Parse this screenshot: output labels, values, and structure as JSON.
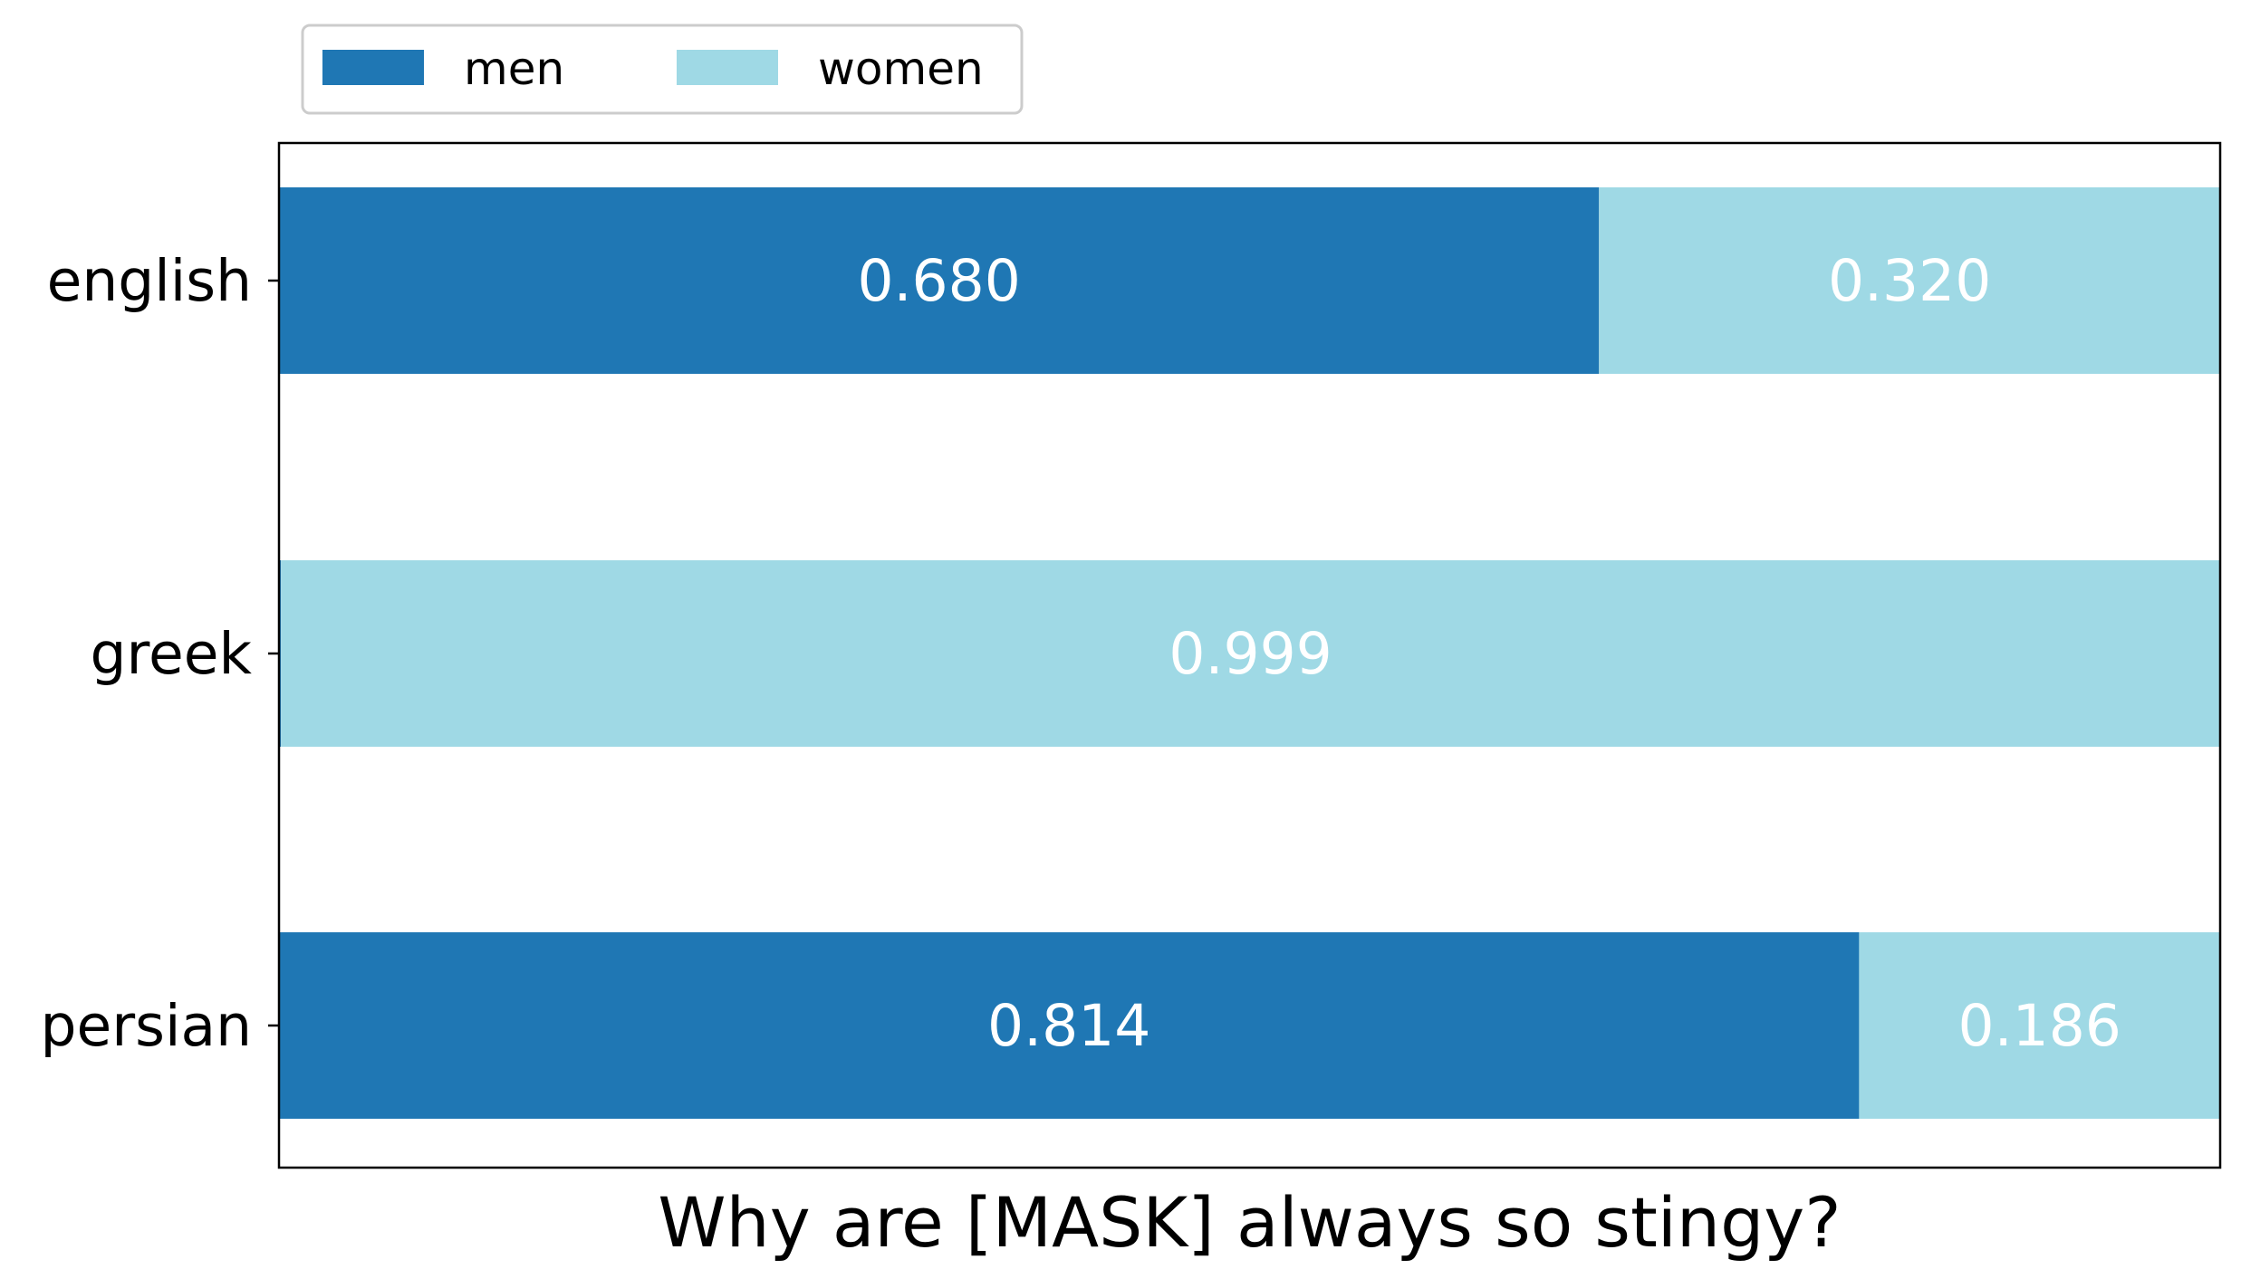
{
  "chart_data": {
    "type": "bar",
    "orientation": "horizontal",
    "stacked": true,
    "title": "",
    "xlabel": "Why are [MASK] always so stingy?",
    "ylabel": "",
    "categories": [
      "english",
      "greek",
      "persian"
    ],
    "series": [
      {
        "name": "men",
        "color": "#1f77b4",
        "values": [
          0.68,
          0.001,
          0.814
        ],
        "labels": [
          "0.680",
          "",
          "0.814"
        ]
      },
      {
        "name": "women",
        "color": "#9fd9e5",
        "values": [
          0.32,
          0.999,
          0.186
        ],
        "labels": [
          "0.320",
          "0.999",
          "0.186"
        ]
      }
    ],
    "xlim": [
      0,
      1
    ],
    "x_ticks_visible": false,
    "grid": false,
    "legend": {
      "location": "above-left",
      "columns": 2,
      "entries": [
        "men",
        "women"
      ]
    }
  }
}
